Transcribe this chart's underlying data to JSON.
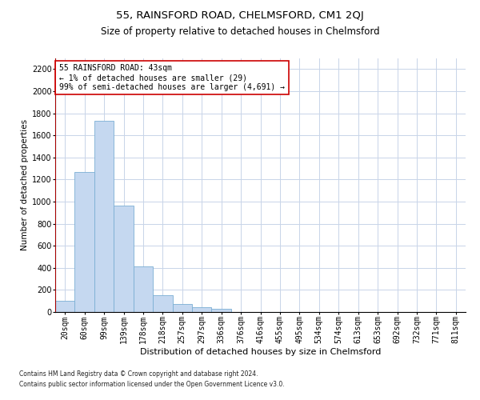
{
  "title1": "55, RAINSFORD ROAD, CHELMSFORD, CM1 2QJ",
  "title2": "Size of property relative to detached houses in Chelmsford",
  "xlabel": "Distribution of detached houses by size in Chelmsford",
  "ylabel": "Number of detached properties",
  "categories": [
    "20sqm",
    "60sqm",
    "99sqm",
    "139sqm",
    "178sqm",
    "218sqm",
    "257sqm",
    "297sqm",
    "336sqm",
    "376sqm",
    "416sqm",
    "455sqm",
    "495sqm",
    "534sqm",
    "574sqm",
    "613sqm",
    "653sqm",
    "692sqm",
    "732sqm",
    "771sqm",
    "811sqm"
  ],
  "values": [
    100,
    1270,
    1730,
    960,
    415,
    150,
    75,
    40,
    30,
    0,
    0,
    0,
    0,
    0,
    0,
    0,
    0,
    0,
    0,
    0,
    0
  ],
  "bar_color": "#c5d8f0",
  "bar_edge_color": "#7bafd4",
  "marker_color": "#cc0000",
  "ylim": [
    0,
    2300
  ],
  "yticks": [
    0,
    200,
    400,
    600,
    800,
    1000,
    1200,
    1400,
    1600,
    1800,
    2000,
    2200
  ],
  "annotation_text": "55 RAINSFORD ROAD: 43sqm\n← 1% of detached houses are smaller (29)\n99% of semi-detached houses are larger (4,691) →",
  "annotation_box_color": "#ffffff",
  "annotation_border_color": "#cc0000",
  "footnote1": "Contains HM Land Registry data © Crown copyright and database right 2024.",
  "footnote2": "Contains public sector information licensed under the Open Government Licence v3.0.",
  "bg_color": "#ffffff",
  "grid_color": "#c8d4e8",
  "title1_fontsize": 9.5,
  "title2_fontsize": 8.5,
  "xlabel_fontsize": 8,
  "ylabel_fontsize": 7.5,
  "tick_fontsize": 7,
  "annot_fontsize": 7,
  "footnote_fontsize": 5.5
}
